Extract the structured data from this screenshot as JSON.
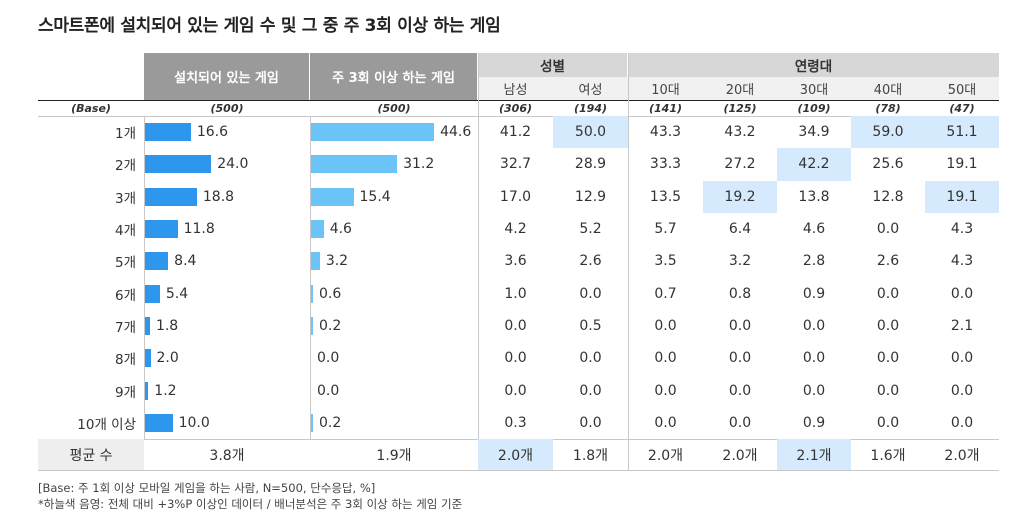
{
  "title": "스마트폰에 설치되어 있는 게임 수 및 그 중 주 3회 이상 하는 게임",
  "colors": {
    "bar_installed": "#2f96ee",
    "bar_weekly": "#6cc3f8",
    "highlight": "#d5eafc",
    "header_dark": "#9a9a9a",
    "header_light": "#d7d7d7"
  },
  "headers": {
    "installed": "설치되어 있는 게임",
    "weekly": "주 3회 이상 하는 게임",
    "gender_group": "성별",
    "age_group": "연령대",
    "gender": [
      "남성",
      "여성"
    ],
    "age": [
      "10대",
      "20대",
      "30대",
      "40대",
      "50대"
    ]
  },
  "base_label": "(Base)",
  "bases": [
    "(500)",
    "(500)",
    "(306)",
    "(194)",
    "(141)",
    "(125)",
    "(109)",
    "(78)",
    "(47)"
  ],
  "chart_data": [
    {
      "type": "bar",
      "title": "설치되어 있는 게임",
      "orientation": "horizontal",
      "categories": [
        "1개",
        "2개",
        "3개",
        "4개",
        "5개",
        "6개",
        "7개",
        "8개",
        "9개",
        "10개 이상"
      ],
      "values": [
        16.6,
        24.0,
        18.8,
        11.8,
        8.4,
        5.4,
        1.8,
        2.0,
        1.2,
        10.0
      ],
      "value_labels": [
        "16.6",
        "24.0",
        "18.8",
        "11.8",
        "8.4",
        "5.4",
        "1.8",
        "2.0",
        "1.2",
        "10.0"
      ],
      "xlim": [
        0,
        50
      ]
    },
    {
      "type": "bar",
      "title": "주 3회 이상 하는 게임",
      "orientation": "horizontal",
      "categories": [
        "1개",
        "2개",
        "3개",
        "4개",
        "5개",
        "6개",
        "7개",
        "8개",
        "9개",
        "10개 이상"
      ],
      "values": [
        44.6,
        31.2,
        15.4,
        4.6,
        3.2,
        0.6,
        0.2,
        0.0,
        0.0,
        0.2
      ],
      "value_labels": [
        "44.6",
        "31.2",
        "15.4",
        "4.6",
        "3.2",
        "0.6",
        "0.2",
        "0.0",
        "0.0",
        "0.2"
      ],
      "xlim": [
        0,
        50
      ]
    },
    {
      "type": "table",
      "columns": [
        "남성",
        "여성",
        "10대",
        "20대",
        "30대",
        "40대",
        "50대"
      ],
      "rows": [
        {
          "label": "1개",
          "values": [
            "41.2",
            "50.0",
            "43.3",
            "43.2",
            "34.9",
            "59.0",
            "51.1"
          ],
          "highlight": [
            false,
            true,
            false,
            false,
            false,
            true,
            true
          ]
        },
        {
          "label": "2개",
          "values": [
            "32.7",
            "28.9",
            "33.3",
            "27.2",
            "42.2",
            "25.6",
            "19.1"
          ],
          "highlight": [
            false,
            false,
            false,
            false,
            true,
            false,
            false
          ]
        },
        {
          "label": "3개",
          "values": [
            "17.0",
            "12.9",
            "13.5",
            "19.2",
            "13.8",
            "12.8",
            "19.1"
          ],
          "highlight": [
            false,
            false,
            false,
            true,
            false,
            false,
            true
          ]
        },
        {
          "label": "4개",
          "values": [
            "4.2",
            "5.2",
            "5.7",
            "6.4",
            "4.6",
            "0.0",
            "4.3"
          ],
          "highlight": [
            false,
            false,
            false,
            false,
            false,
            false,
            false
          ]
        },
        {
          "label": "5개",
          "values": [
            "3.6",
            "2.6",
            "3.5",
            "3.2",
            "2.8",
            "2.6",
            "4.3"
          ],
          "highlight": [
            false,
            false,
            false,
            false,
            false,
            false,
            false
          ]
        },
        {
          "label": "6개",
          "values": [
            "1.0",
            "0.0",
            "0.7",
            "0.8",
            "0.9",
            "0.0",
            "0.0"
          ],
          "highlight": [
            false,
            false,
            false,
            false,
            false,
            false,
            false
          ]
        },
        {
          "label": "7개",
          "values": [
            "0.0",
            "0.5",
            "0.0",
            "0.0",
            "0.0",
            "0.0",
            "2.1"
          ],
          "highlight": [
            false,
            false,
            false,
            false,
            false,
            false,
            false
          ]
        },
        {
          "label": "8개",
          "values": [
            "0.0",
            "0.0",
            "0.0",
            "0.0",
            "0.0",
            "0.0",
            "0.0"
          ],
          "highlight": [
            false,
            false,
            false,
            false,
            false,
            false,
            false
          ]
        },
        {
          "label": "9개",
          "values": [
            "0.0",
            "0.0",
            "0.0",
            "0.0",
            "0.0",
            "0.0",
            "0.0"
          ],
          "highlight": [
            false,
            false,
            false,
            false,
            false,
            false,
            false
          ]
        },
        {
          "label": "10개 이상",
          "values": [
            "0.3",
            "0.0",
            "0.0",
            "0.0",
            "0.9",
            "0.0",
            "0.0"
          ],
          "highlight": [
            false,
            false,
            false,
            false,
            false,
            false,
            false
          ]
        }
      ]
    }
  ],
  "average": {
    "label": "평균 수",
    "installed": "3.8개",
    "weekly": "1.9개",
    "values": [
      "2.0개",
      "1.8개",
      "2.0개",
      "2.0개",
      "2.1개",
      "1.6개",
      "2.0개"
    ],
    "highlight": [
      true,
      false,
      false,
      false,
      true,
      false,
      false
    ]
  },
  "footnotes": [
    "[Base: 주 1회 이상 모바일 게임을 하는 사람, N=500, 단수응답, %]",
    "*하늘색 음영: 전체 대비 +3%P 이상인 데이터 / 배너분석은 주 3회 이상 하는 게임 기준"
  ]
}
